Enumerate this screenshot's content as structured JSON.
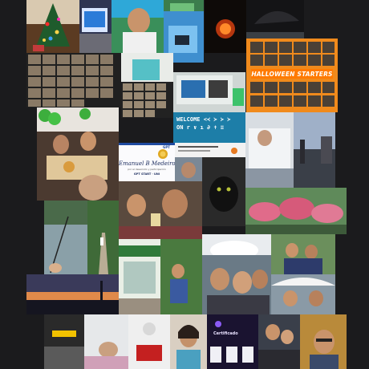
{
  "collage": {
    "halloween_banner": "HALLOWEEN STARTERS",
    "welcome_line1": "WELCOME <≺ ≻ ≻ ≻",
    "welcome_line2": "ON r ∨ ı ∂ ✝ ≡",
    "cert_brand": "GPT",
    "cert_name": "Emanuel B Medeiros",
    "cert_body": "por el desarrollo y participación",
    "cert_sign": "GPT START · UNI",
    "cert2_title": "Certificado"
  }
}
